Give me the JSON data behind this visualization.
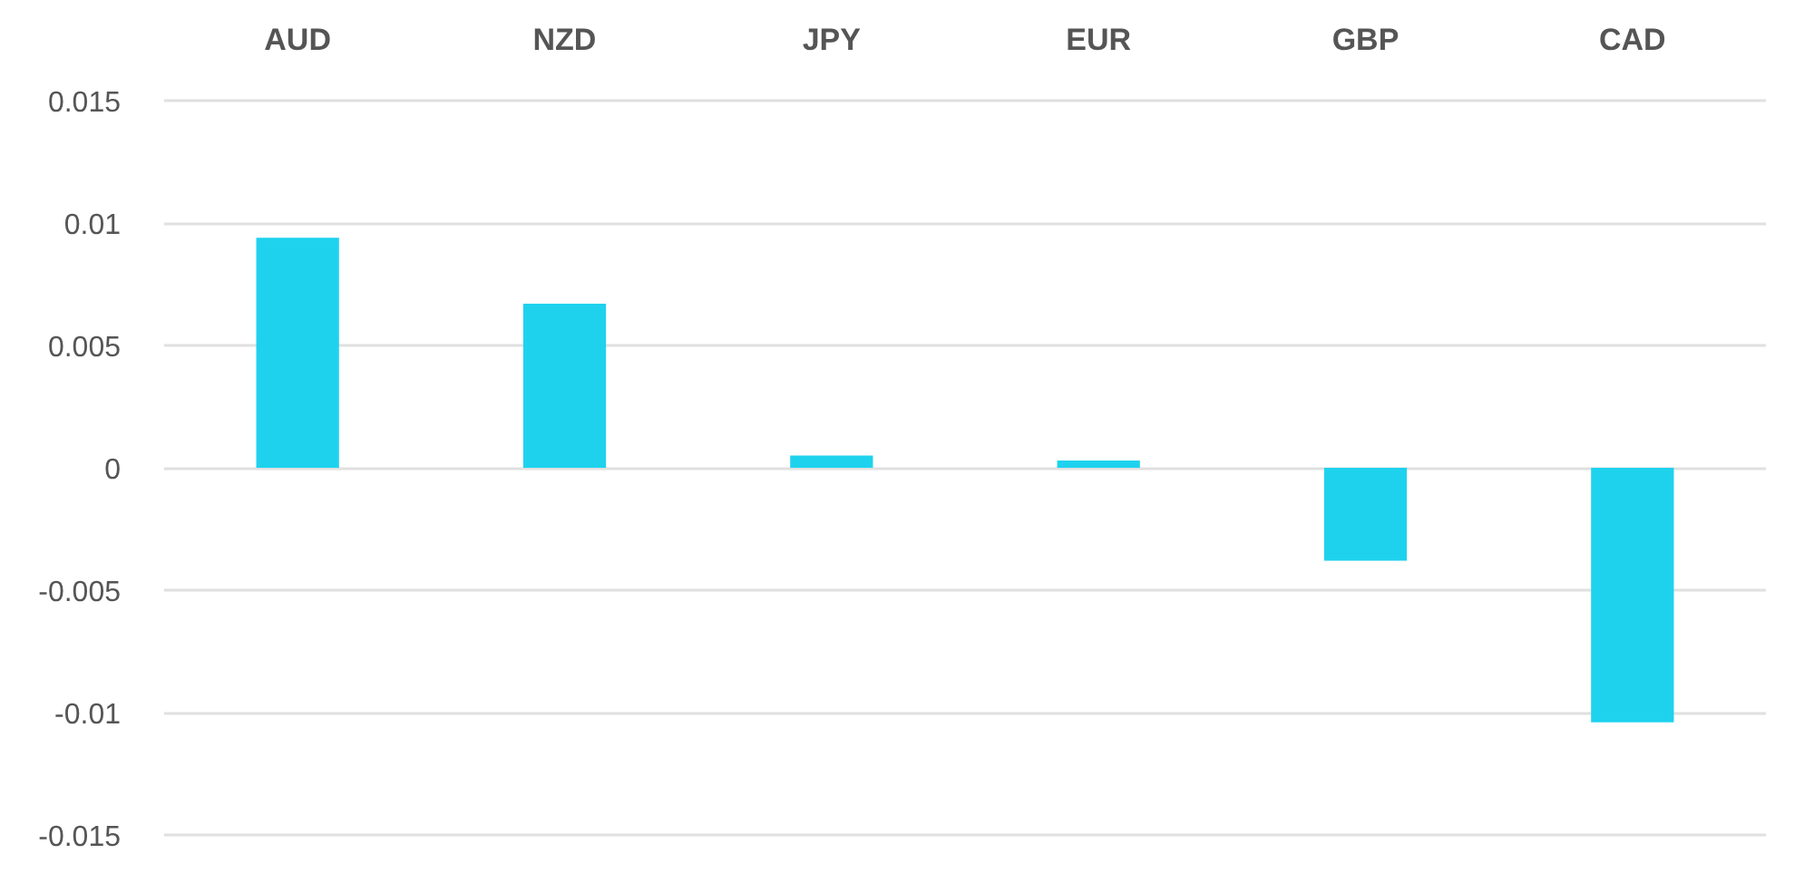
{
  "chart_data": {
    "type": "bar",
    "categories": [
      "AUD",
      "NZD",
      "JPY",
      "EUR",
      "GBP",
      "CAD"
    ],
    "values": [
      0.0094,
      0.0067,
      0.0005,
      0.0003,
      -0.0038,
      -0.0104
    ],
    "color": "#1ed2ee",
    "ylim": [
      -0.015,
      0.015
    ],
    "yticks": [
      -0.015,
      -0.01,
      -0.005,
      0,
      0.005,
      0.01,
      0.015
    ],
    "grid": "y"
  }
}
